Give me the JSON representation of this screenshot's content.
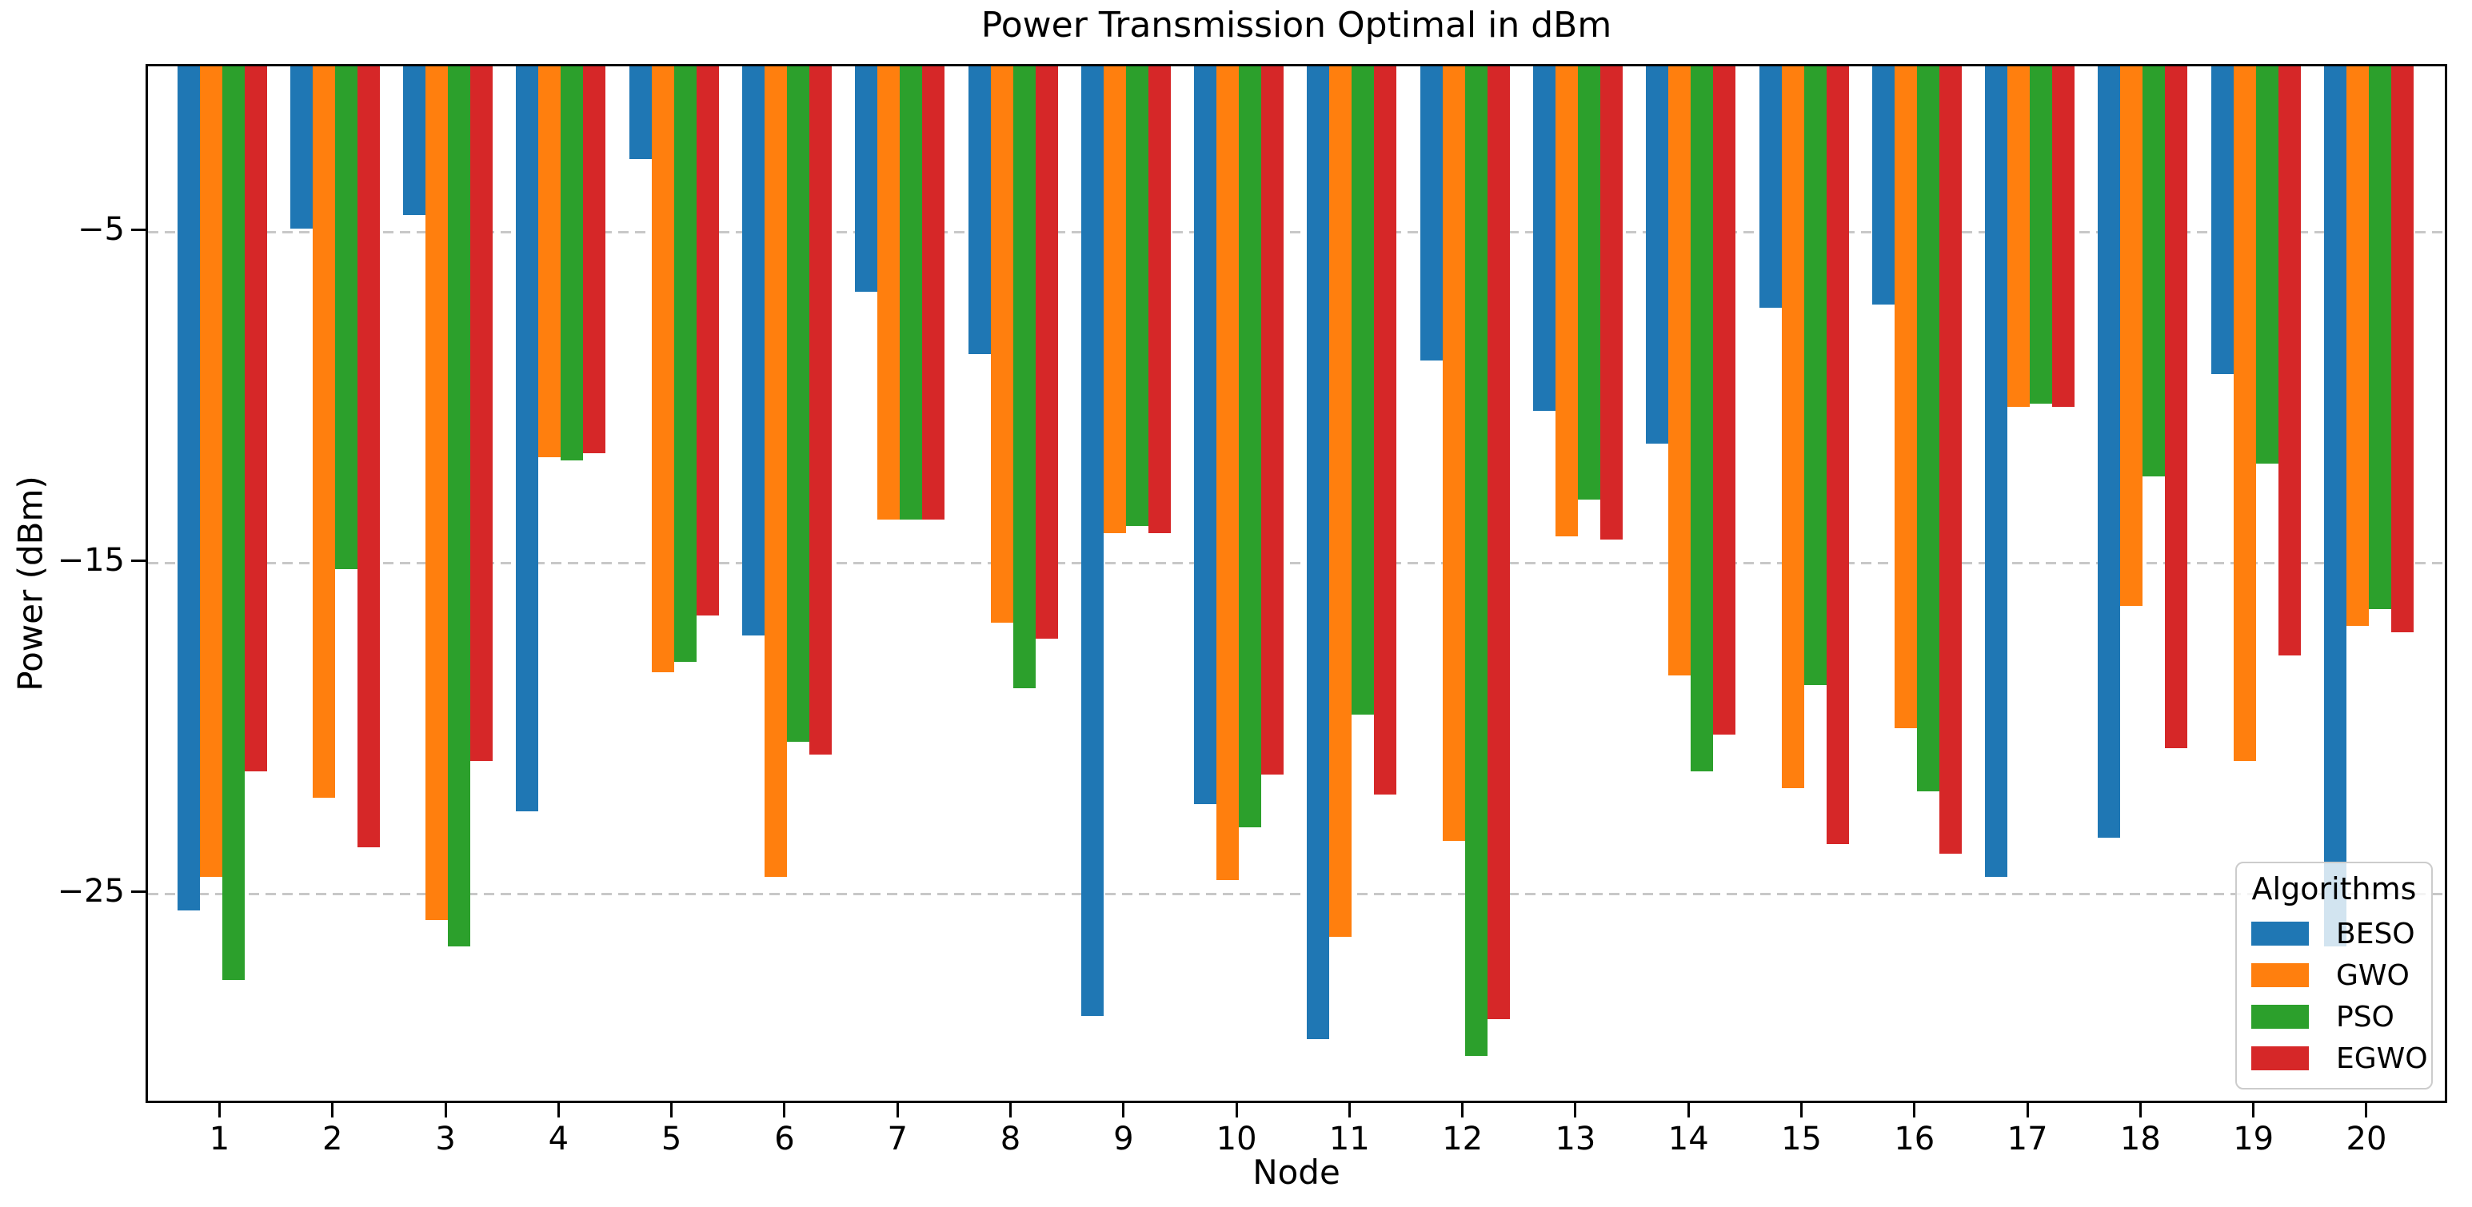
{
  "figure": {
    "title": "Power Transmission Optimal in dBm",
    "xlabel": "Node",
    "ylabel": "Power (dBm)"
  },
  "legend": {
    "title": "Algorithms",
    "entries": [
      {
        "label": "BESO",
        "color": "#1f77b4"
      },
      {
        "label": "GWO",
        "color": "#ff7f0e"
      },
      {
        "label": "PSO",
        "color": "#2ca02c"
      },
      {
        "label": "EGWO",
        "color": "#d62728"
      }
    ]
  },
  "chart_data": {
    "type": "bar",
    "title": "Power Transmission Optimal in dBm",
    "xlabel": "Node",
    "ylabel": "Power (dBm)",
    "categories": [
      "1",
      "2",
      "3",
      "4",
      "5",
      "6",
      "7",
      "8",
      "9",
      "10",
      "11",
      "12",
      "13",
      "14",
      "15",
      "16",
      "17",
      "18",
      "19",
      "20"
    ],
    "series": [
      {
        "name": "BESO",
        "color": "#1f77b4",
        "values": [
          -25.5,
          -4.9,
          -4.5,
          -22.5,
          -2.8,
          -17.2,
          -6.8,
          -8.7,
          -28.7,
          -22.3,
          -29.4,
          -8.9,
          -10.4,
          -11.4,
          -7.3,
          -7.2,
          -24.5,
          -23.3,
          -9.3,
          -26.6
        ]
      },
      {
        "name": "GWO",
        "color": "#ff7f0e",
        "values": [
          -24.5,
          -22.1,
          -25.8,
          -11.8,
          -18.3,
          -24.5,
          -13.7,
          -16.8,
          -14.1,
          -24.6,
          -26.3,
          -23.4,
          -14.2,
          -18.4,
          -21.8,
          -20.0,
          -10.3,
          -16.3,
          -21.0,
          -16.9
        ]
      },
      {
        "name": "PSO",
        "color": "#2ca02c",
        "values": [
          -27.6,
          -15.2,
          -26.6,
          -11.9,
          -18.0,
          -20.4,
          -13.7,
          -18.8,
          -13.9,
          -23.0,
          -19.6,
          -29.9,
          -13.1,
          -21.3,
          -18.7,
          -21.9,
          -10.2,
          -12.4,
          -12.0,
          -16.4
        ]
      },
      {
        "name": "EGWO",
        "color": "#d62728",
        "values": [
          -21.3,
          -23.6,
          -21.0,
          -11.7,
          -16.6,
          -20.8,
          -13.7,
          -17.3,
          -14.1,
          -21.4,
          -22.0,
          -28.8,
          -14.3,
          -20.2,
          -23.5,
          -23.8,
          -10.3,
          -20.6,
          -17.8,
          -17.1
        ]
      }
    ],
    "ylim": [
      -31.4,
      0
    ],
    "yticks": [
      -5,
      -15,
      -25
    ],
    "ytick_labels": [
      "−5",
      "−15",
      "−25"
    ],
    "grid": "horizontal dashed",
    "legend_title": "Algorithms",
    "legend_position": "lower right"
  }
}
